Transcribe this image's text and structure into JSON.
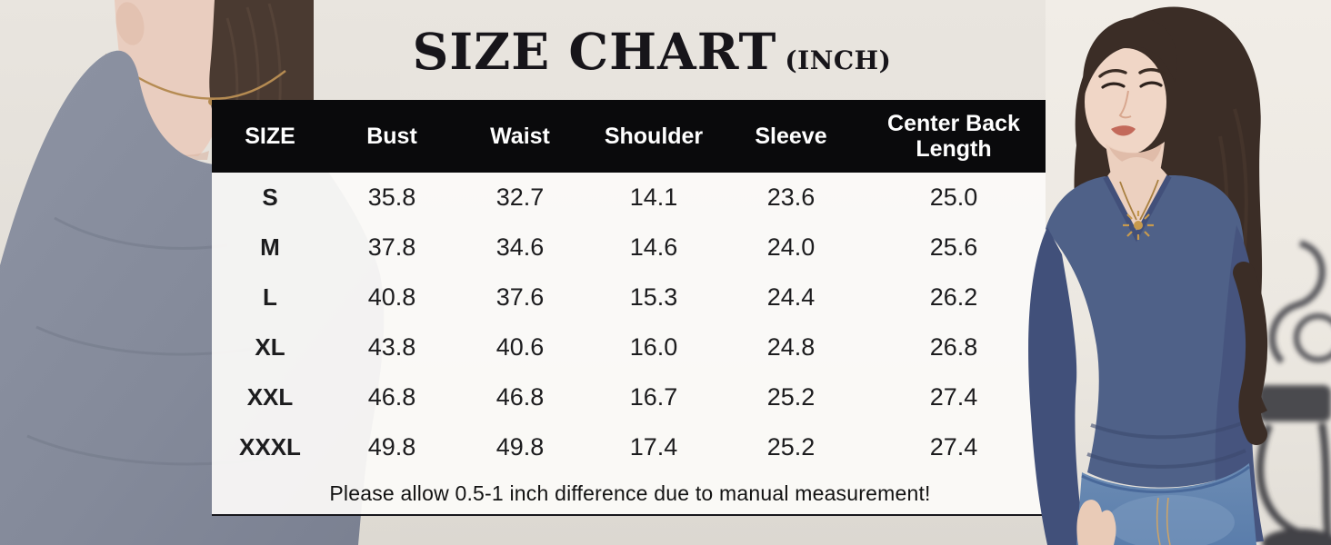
{
  "page": {
    "title": "SIZE CHART",
    "unit": "(INCH)"
  },
  "chart_data": {
    "type": "table",
    "title": "SIZE CHART (INCH)",
    "columns": [
      "SIZE",
      "Bust",
      "Waist",
      "Shoulder",
      "Sleeve",
      "Center Back Length"
    ],
    "rows": [
      [
        "S",
        "35.8",
        "32.7",
        "14.1",
        "23.6",
        "25.0"
      ],
      [
        "M",
        "37.8",
        "34.6",
        "14.6",
        "24.0",
        "25.6"
      ],
      [
        "L",
        "40.8",
        "37.6",
        "15.3",
        "24.4",
        "26.2"
      ],
      [
        "XL",
        "43.8",
        "40.6",
        "16.0",
        "24.8",
        "26.8"
      ],
      [
        "XXL",
        "46.8",
        "46.8",
        "16.7",
        "25.2",
        "27.4"
      ],
      [
        "XXXL",
        "49.8",
        "49.8",
        "17.4",
        "25.2",
        "27.4"
      ]
    ],
    "note": "Please allow 0.5-1 inch difference due to manual measurement!"
  },
  "images": {
    "left_photo_alt": "Back view of model wearing heather gray long-sleeve top with gold necklace",
    "right_photo_alt": "Front view of model with long dark wavy hair wearing blue v-neck long-sleeve top, gold sun pendant necklace and blue jeans"
  },
  "colors": {
    "page_bg": "#e6e2dc",
    "header_bg": "#0a0a0c",
    "header_text": "#ffffff",
    "table_body_bg": "#faf9f7",
    "text": "#1c1c1e",
    "left_shirt_gray": "#8a90a0",
    "right_shirt_blue": "#4d5f87",
    "denim_blue": "#6c8cb4",
    "necklace_gold": "#b58b52"
  }
}
